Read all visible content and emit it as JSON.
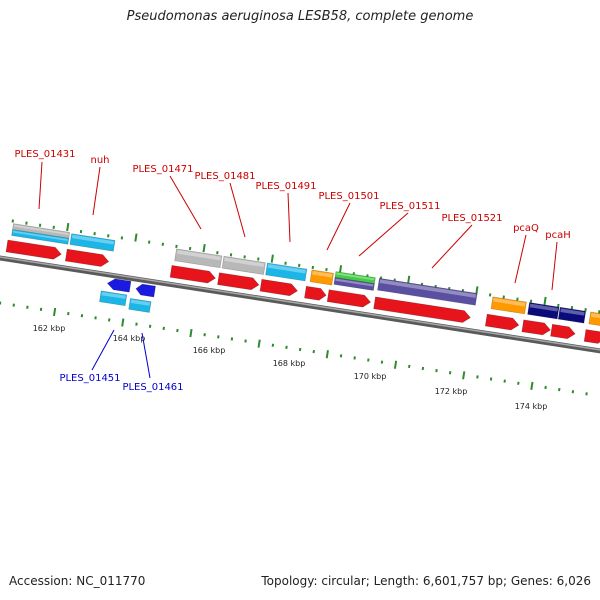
{
  "title": "Pseudomonas aeruginosa LESB58, complete genome",
  "footer": {
    "accession": "Accession: NC_011770",
    "summary": "Topology: circular; Length: 6,601,757 bp; Genes: 6,026"
  },
  "colors": {
    "cds": "#e8141c",
    "backbone": "#808080",
    "tick": "#2e8b2e",
    "label_top": "#cc0000",
    "label_bottom": "#0000cc",
    "grey": "#b8b8b8",
    "cyan": "#1ab6e8",
    "orange": "#ff9900",
    "green": "#44cc44",
    "purple": "#5a4fa0",
    "navy": "#0a0a7a",
    "blue": "#1a1ae0"
  },
  "kbp_labels": [
    "162 kbp",
    "164 kbp",
    "166 kbp",
    "168 kbp",
    "170 kbp",
    "172 kbp",
    "174 kbp"
  ],
  "gene_labels_top": [
    "PLES_01431",
    "nuh",
    "PLES_01471",
    "PLES_01481",
    "PLES_01491",
    "PLES_01501",
    "PLES_01511",
    "PLES_01521",
    "pcaQ",
    "pcaH"
  ],
  "gene_labels_bottom": [
    "PLES_01451",
    "PLES_01461"
  ]
}
